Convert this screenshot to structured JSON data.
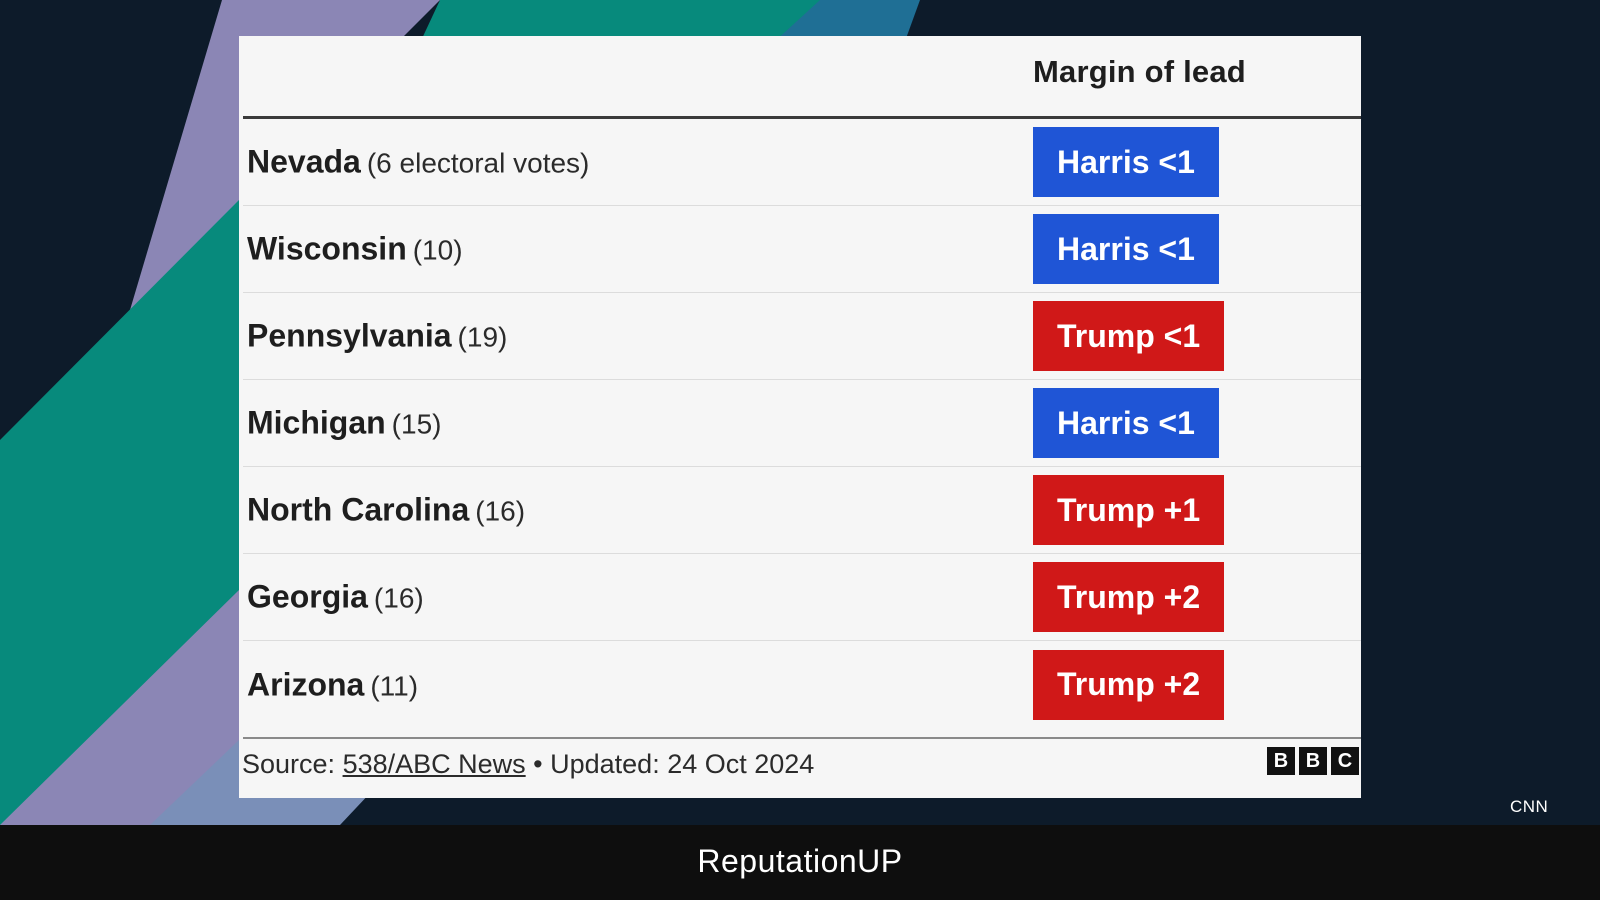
{
  "chart_data": {
    "type": "table",
    "column_header": "Margin of lead",
    "rows": [
      {
        "state": "Nevada",
        "votes": "(6 electoral votes)",
        "lead": "Harris <1",
        "party": "harris"
      },
      {
        "state": "Wisconsin",
        "votes": "(10)",
        "lead": "Harris <1",
        "party": "harris"
      },
      {
        "state": "Pennsylvania",
        "votes": "(19)",
        "lead": "Trump <1",
        "party": "trump"
      },
      {
        "state": "Michigan",
        "votes": "(15)",
        "lead": "Harris <1",
        "party": "harris"
      },
      {
        "state": "North Carolina",
        "votes": "(16)",
        "lead": "Trump +1",
        "party": "trump"
      },
      {
        "state": "Georgia",
        "votes": "(16)",
        "lead": "Trump +2",
        "party": "trump"
      },
      {
        "state": "Arizona",
        "votes": "(11)",
        "lead": "Trump +2",
        "party": "trump"
      }
    ],
    "colors": {
      "harris": "#1f55d6",
      "trump": "#d01818"
    }
  },
  "footer": {
    "source_prefix": "Source: ",
    "source_link": "538/ABC News",
    "updated": " • Updated: 24 Oct 2024",
    "bbc_letters": [
      "B",
      "B",
      "C"
    ]
  },
  "watermark": "CNN",
  "brand": "ReputationUP"
}
